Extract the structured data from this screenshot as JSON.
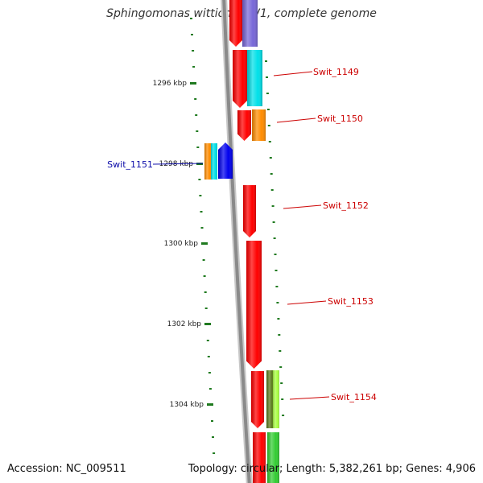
{
  "title": "Sphingomonas wittichii RW1, complete genome",
  "footer": {
    "accession": "Accession: NC_009511",
    "summary": "Topology: circular; Length: 5,382,261 bp; Genes: 4,906"
  },
  "colors": {
    "backbone": "#8a8a8a",
    "tick": "#1f7a1f",
    "forward_label": "#cc0000",
    "reverse_label": "#0a0aa8",
    "gene_red": "#ff0000",
    "gene_orange": "#ff8c00",
    "gene_cyan": "#00e0e8",
    "gene_blue": "#0000ee",
    "gene_purple": "#7868d8",
    "gene_olive": "#5a7a1a",
    "gene_lime": "#aaff44",
    "gene_green": "#33cc33"
  },
  "ticks": [
    {
      "label": "1296 kbp"
    },
    {
      "label": "1298 kbp"
    },
    {
      "label": "1300 kbp"
    },
    {
      "label": "1302 kbp"
    },
    {
      "label": "1304 kbp"
    }
  ],
  "gene_labels": [
    {
      "id": "Swit_1149",
      "strand": "forward"
    },
    {
      "id": "Swit_1150",
      "strand": "forward"
    },
    {
      "id": "Swit_1151",
      "strand": "reverse"
    },
    {
      "id": "Swit_1152",
      "strand": "forward"
    },
    {
      "id": "Swit_1153",
      "strand": "forward"
    },
    {
      "id": "Swit_1154",
      "strand": "forward"
    }
  ]
}
